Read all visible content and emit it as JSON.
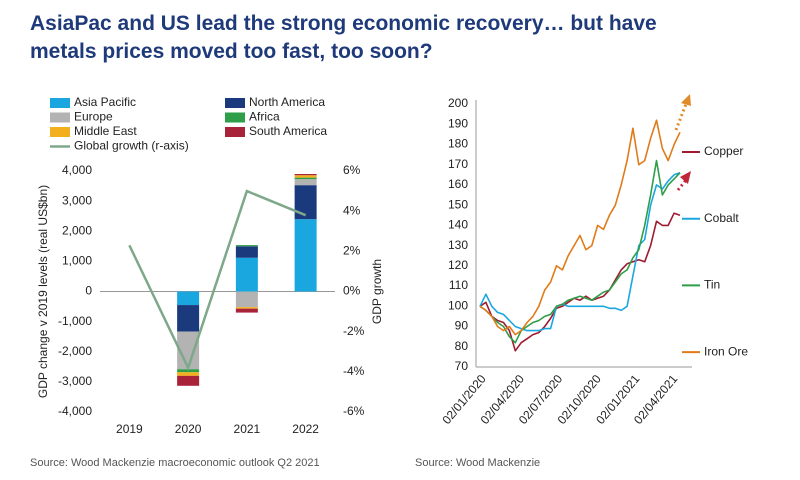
{
  "title": [
    "AsiaPac and US lead the strong economic recovery… but have",
    "metals prices moved too fast, too soon?"
  ],
  "chart_data": [
    {
      "type": "bar",
      "stacked": true,
      "y_label": "GDP change v 2019 levels (real US$bn)",
      "y2_label": "GDP growth",
      "source": "Source: Wood Mackenzie macroeconomic outlook Q2 2021",
      "categories": [
        "2019",
        "2020",
        "2021",
        "2022"
      ],
      "series": [
        {
          "name": "Asia Pacific",
          "color": "#1aa7e0",
          "values": [
            0,
            -450,
            1120,
            2400
          ]
        },
        {
          "name": "North America",
          "color": "#1b3a7e",
          "values": [
            0,
            -880,
            380,
            1130
          ]
        },
        {
          "name": "Europe",
          "color": "#b3b3b3",
          "values": [
            0,
            -1250,
            -520,
            200
          ]
        },
        {
          "name": "Africa",
          "color": "#2e9e48",
          "values": [
            0,
            -100,
            40,
            50
          ]
        },
        {
          "name": "Middle East",
          "color": "#f2b01e",
          "values": [
            0,
            -120,
            -50,
            80
          ]
        },
        {
          "name": "South America",
          "color": "#a8233a",
          "values": [
            0,
            -330,
            -130,
            40
          ]
        },
        {
          "name": "Global growth (r-axis)",
          "color": "#7ea88a",
          "type": "line",
          "axis": "y2",
          "values": [
            2.3,
            -3.8,
            5.0,
            3.8
          ]
        }
      ],
      "ylim": [
        -4000,
        4000
      ],
      "yticks": [
        {
          "value": -4000,
          "label": "-4,000"
        },
        {
          "value": -3000,
          "label": "-3,000"
        },
        {
          "value": -2000,
          "label": "-2,000"
        },
        {
          "value": -1000,
          "label": "-1,000"
        },
        0,
        {
          "value": 1000,
          "label": "1,000"
        },
        {
          "value": 2000,
          "label": "2,000"
        },
        {
          "value": 3000,
          "label": "3,000"
        },
        {
          "value": 4000,
          "label": "4,000"
        }
      ],
      "y2lim": [
        -6,
        6
      ],
      "y2ticks": [
        {
          "value": -6,
          "label": "-6%"
        },
        {
          "value": -4,
          "label": "-4%"
        },
        {
          "value": -2,
          "label": "-2%"
        },
        {
          "value": 0,
          "label": "0%"
        },
        {
          "value": 2,
          "label": "2%"
        },
        {
          "value": 4,
          "label": "4%"
        },
        {
          "value": 6,
          "label": "6%"
        }
      ]
    },
    {
      "type": "line",
      "source": "Source: Wood Mackenzie",
      "x": [
        "02/01/2020",
        "16/01/2020",
        "30/01/2020",
        "13/02/2020",
        "27/02/2020",
        "12/03/2020",
        "26/03/2020",
        "09/04/2020",
        "23/04/2020",
        "07/05/2020",
        "21/05/2020",
        "04/06/2020",
        "18/06/2020",
        "02/07/2020",
        "16/07/2020",
        "30/07/2020",
        "13/08/2020",
        "27/08/2020",
        "10/09/2020",
        "24/09/2020",
        "08/10/2020",
        "22/10/2020",
        "05/11/2020",
        "19/11/2020",
        "03/12/2020",
        "17/12/2020",
        "31/12/2020",
        "14/01/2021",
        "28/01/2021",
        "11/02/2021",
        "25/02/2021",
        "11/03/2021",
        "25/03/2021",
        "08/04/2021",
        "22/04/2021"
      ],
      "series": [
        {
          "name": "Copper",
          "color": "#9e1b32",
          "values": [
            100,
            102,
            95,
            93,
            92,
            88,
            78,
            82,
            84,
            86,
            87,
            90,
            94,
            99,
            100,
            102,
            104,
            103,
            105,
            103,
            104,
            105,
            108,
            113,
            118,
            121,
            122,
            123,
            122,
            130,
            142,
            140,
            140,
            146,
            145
          ]
        },
        {
          "name": "Cobalt",
          "color": "#1aa7e0",
          "values": [
            100,
            106,
            100,
            97,
            96,
            93,
            90,
            89,
            88,
            88,
            88,
            89,
            89,
            100,
            101,
            100,
            100,
            100,
            100,
            100,
            100,
            100,
            99,
            99,
            98,
            100,
            115,
            130,
            133,
            150,
            160,
            158,
            162,
            165,
            166
          ]
        },
        {
          "name": "Tin",
          "color": "#2e9e48",
          "values": [
            100,
            98,
            95,
            92,
            90,
            85,
            82,
            88,
            90,
            92,
            93,
            95,
            96,
            100,
            101,
            103,
            104,
            105,
            104,
            103,
            105,
            107,
            108,
            112,
            116,
            118,
            124,
            128,
            140,
            155,
            172,
            155,
            160,
            163,
            166
          ]
        },
        {
          "name": "Iron Ore",
          "color": "#e07b1a",
          "values": [
            100,
            98,
            95,
            90,
            88,
            90,
            86,
            88,
            92,
            95,
            100,
            108,
            112,
            120,
            118,
            125,
            130,
            135,
            128,
            130,
            140,
            138,
            145,
            150,
            160,
            172,
            188,
            170,
            172,
            183,
            192,
            178,
            172,
            180,
            186
          ]
        }
      ],
      "xlim": [
        "02/01/2020",
        "22/04/2021"
      ],
      "xticks": [
        "02/01/2020",
        "02/04/2020",
        "02/07/2020",
        "02/10/2020",
        "02/01/2021",
        "02/04/2021"
      ],
      "ylim": [
        70,
        200
      ],
      "yticks": [
        70,
        80,
        90,
        100,
        110,
        120,
        130,
        140,
        150,
        160,
        170,
        180,
        190,
        200
      ]
    }
  ]
}
